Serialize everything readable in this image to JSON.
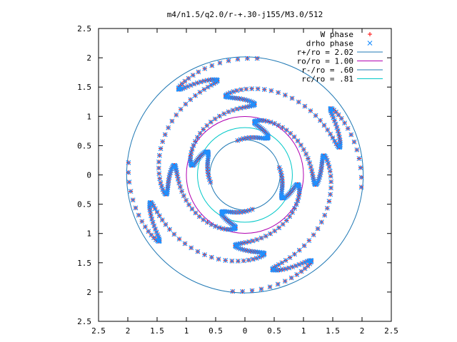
{
  "chart_data": {
    "type": "scatter",
    "title": "m4/n1.5/q2.0/r-+.30-j155/M3.0/512",
    "xlabel": "",
    "ylabel": "",
    "xlim": [
      2.5,
      -2.5
    ],
    "ylim": [
      -2.5,
      2.5
    ],
    "x_ticks": [
      2.5,
      2,
      1.5,
      1,
      0.5,
      0,
      -0.5,
      -1,
      -1.5,
      -2,
      -2.5
    ],
    "x_tick_labels": [
      "2.5",
      "2",
      "1.5",
      "1",
      "0.5",
      "0",
      "0.5",
      "1",
      "1.5",
      "2",
      "2.5"
    ],
    "y_ticks": [
      2.5,
      2,
      1.5,
      1,
      0.5,
      0,
      -0.5,
      -1,
      -1.5,
      -2,
      -2.5
    ],
    "y_tick_labels": [
      "2.5",
      "2",
      "1.5",
      "1",
      "0.5",
      "0",
      "0.5",
      "1",
      "1.5",
      "2",
      "2.5"
    ],
    "grid": false,
    "legend_position": "top-right",
    "legend": [
      {
        "label": "W phase",
        "kind": "point",
        "marker": "+",
        "color": "#ff0000"
      },
      {
        "label": "drho phase",
        "kind": "point",
        "marker": "x",
        "color": "#1e90ff"
      },
      {
        "label": "r+/ro = 2.02",
        "kind": "line",
        "color": "#1f78b4"
      },
      {
        "label": "ro/ro = 1.00",
        "kind": "line",
        "color": "#b000b0"
      },
      {
        "label": "r-/ro = .60",
        "kind": "line",
        "color": "#1f78b4"
      },
      {
        "label": "rc/ro = .81",
        "kind": "line",
        "color": "#00c8c8"
      }
    ],
    "circles": [
      {
        "name": "r+/ro = 2.02",
        "radius": 2.02,
        "color": "#1f78b4"
      },
      {
        "name": "ro/ro = 1.00",
        "radius": 1.0,
        "color": "#b000b0"
      },
      {
        "name": "r-/ro = .60",
        "radius": 0.6,
        "color": "#1f78b4"
      },
      {
        "name": "rc/ro = .81",
        "radius": 0.81,
        "color": "#00c8c8"
      }
    ],
    "series": [
      {
        "name": "W phase",
        "marker": "+",
        "color": "#ff0000",
        "arms": [
          {
            "start_angle_deg": 168,
            "r_inner": 0.6,
            "r_outer": 2.0
          },
          {
            "start_angle_deg": 258,
            "r_inner": 0.6,
            "r_outer": 2.0
          },
          {
            "start_angle_deg": 348,
            "r_inner": 0.6,
            "r_outer": 2.0
          },
          {
            "start_angle_deg": 78,
            "r_inner": 0.6,
            "r_outer": 2.0
          }
        ]
      },
      {
        "name": "drho phase",
        "marker": "x",
        "color": "#1e90ff",
        "arms": [
          {
            "start_angle_deg": 168,
            "r_inner": 0.6,
            "r_outer": 2.0
          },
          {
            "start_angle_deg": 258,
            "r_inner": 0.6,
            "r_outer": 2.0
          },
          {
            "start_angle_deg": 348,
            "r_inner": 0.6,
            "r_outer": 2.0
          },
          {
            "start_angle_deg": 78,
            "r_inner": 0.6,
            "r_outer": 2.0
          }
        ]
      }
    ]
  }
}
